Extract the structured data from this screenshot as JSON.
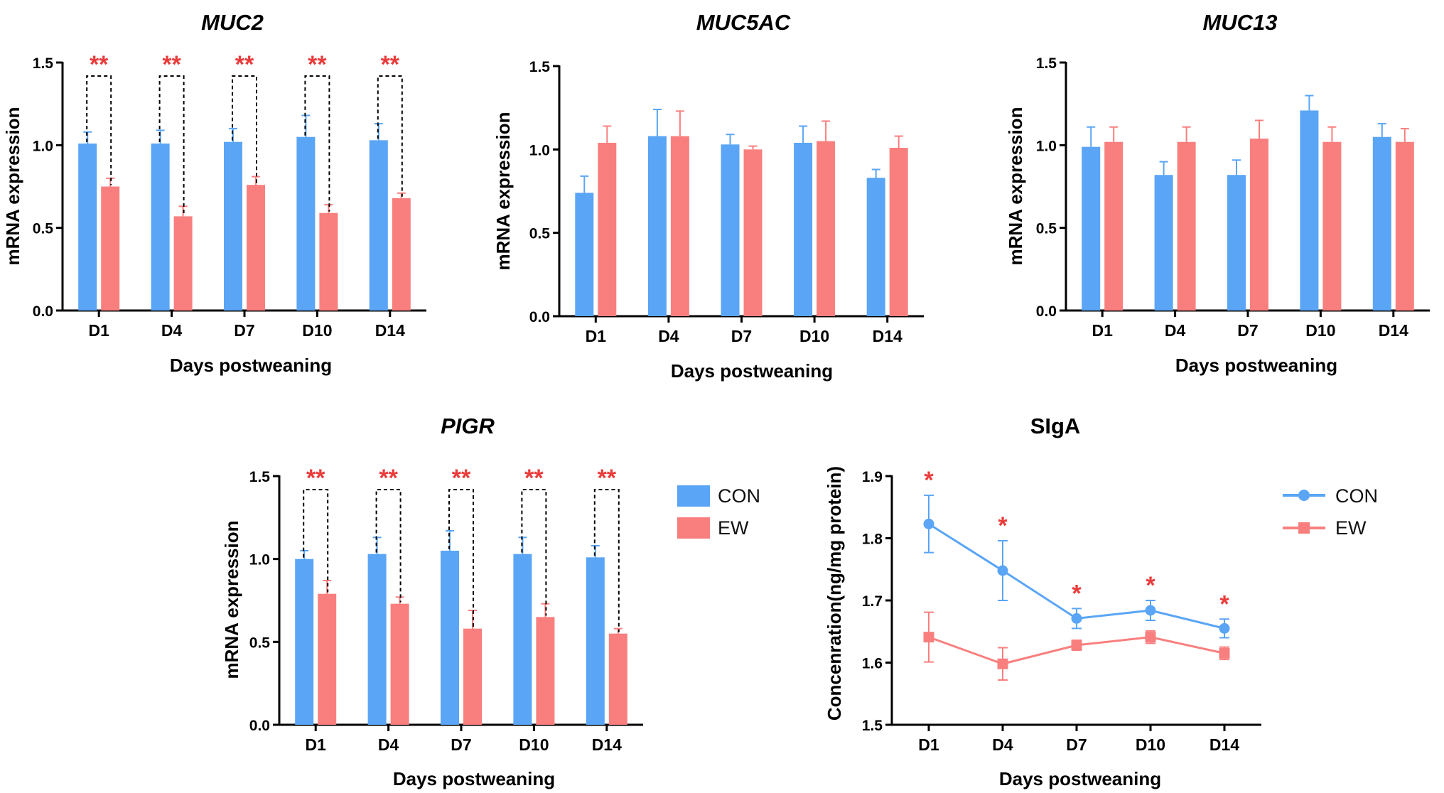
{
  "colors": {
    "con": "#5aa5f5",
    "ew": "#f97f7f",
    "star": "#ea3b3b",
    "axis": "#000000"
  },
  "legend": {
    "con_label": "CON",
    "ew_label": "EW"
  },
  "chart_data": [
    {
      "id": "muc2",
      "type": "bar",
      "title": "MUC2",
      "title_italic": true,
      "xlabel": "Days postweaning",
      "ylabel": "mRNA expression",
      "ylim": [
        0,
        1.5
      ],
      "yticks": [
        "0.0",
        "0.5",
        "1.0",
        "1.5"
      ],
      "categories": [
        "D1",
        "D4",
        "D7",
        "D10",
        "D14"
      ],
      "series": [
        {
          "name": "CON",
          "values": [
            1.01,
            1.01,
            1.02,
            1.05,
            1.03
          ],
          "errors": [
            0.07,
            0.08,
            0.08,
            0.13,
            0.1
          ]
        },
        {
          "name": "EW",
          "values": [
            0.75,
            0.57,
            0.76,
            0.59,
            0.68
          ],
          "errors": [
            0.05,
            0.06,
            0.05,
            0.05,
            0.03
          ]
        }
      ],
      "significance": [
        "**",
        "**",
        "**",
        "**",
        "**"
      ],
      "brackets": true
    },
    {
      "id": "muc5ac",
      "type": "bar",
      "title": "MUC5AC",
      "title_italic": true,
      "xlabel": "Days postweaning",
      "ylabel": "mRNA expression",
      "ylim": [
        0,
        1.5
      ],
      "yticks": [
        "0.0",
        "0.5",
        "1.0",
        "1.5"
      ],
      "categories": [
        "D1",
        "D4",
        "D7",
        "D10",
        "D14"
      ],
      "series": [
        {
          "name": "CON",
          "values": [
            0.74,
            1.08,
            1.03,
            1.04,
            0.83
          ],
          "errors": [
            0.1,
            0.16,
            0.06,
            0.1,
            0.05
          ]
        },
        {
          "name": "EW",
          "values": [
            1.04,
            1.08,
            1.0,
            1.05,
            1.01
          ],
          "errors": [
            0.1,
            0.15,
            0.02,
            0.12,
            0.07
          ]
        }
      ],
      "significance": [
        "",
        "",
        "",
        "",
        ""
      ],
      "brackets": false
    },
    {
      "id": "muc13",
      "type": "bar",
      "title": "MUC13",
      "title_italic": true,
      "xlabel": "Days postweaning",
      "ylabel": "mRNA expression",
      "ylim": [
        0,
        1.5
      ],
      "yticks": [
        "0.0",
        "0.5",
        "1.0",
        "1.5"
      ],
      "categories": [
        "D1",
        "D4",
        "D7",
        "D10",
        "D14"
      ],
      "series": [
        {
          "name": "CON",
          "values": [
            0.99,
            0.82,
            0.82,
            1.21,
            1.05
          ],
          "errors": [
            0.12,
            0.08,
            0.09,
            0.09,
            0.08
          ]
        },
        {
          "name": "EW",
          "values": [
            1.02,
            1.02,
            1.04,
            1.02,
            1.02
          ],
          "errors": [
            0.09,
            0.09,
            0.11,
            0.09,
            0.08
          ]
        }
      ],
      "significance": [
        "",
        "",
        "",
        "",
        ""
      ],
      "brackets": false
    },
    {
      "id": "pigr",
      "type": "bar",
      "title": "PIGR",
      "title_italic": true,
      "xlabel": "Days postweaning",
      "ylabel": "mRNA expression",
      "ylim": [
        0,
        1.5
      ],
      "yticks": [
        "0.0",
        "0.5",
        "1.0",
        "1.5"
      ],
      "categories": [
        "D1",
        "D4",
        "D7",
        "D10",
        "D14"
      ],
      "series": [
        {
          "name": "CON",
          "values": [
            1.0,
            1.03,
            1.05,
            1.03,
            1.01
          ],
          "errors": [
            0.05,
            0.1,
            0.12,
            0.1,
            0.07
          ]
        },
        {
          "name": "EW",
          "values": [
            0.79,
            0.73,
            0.58,
            0.65,
            0.55
          ],
          "errors": [
            0.08,
            0.04,
            0.11,
            0.08,
            0.03
          ]
        }
      ],
      "significance": [
        "**",
        "**",
        "**",
        "**",
        "**"
      ],
      "brackets": true
    },
    {
      "id": "siga",
      "type": "line",
      "title": "SIgA",
      "title_italic": false,
      "xlabel": "Days postweaning",
      "ylabel": "Concenration(ng/mg protein)",
      "ylim": [
        1.5,
        1.9
      ],
      "yticks": [
        "1.5",
        "1.6",
        "1.7",
        "1.8",
        "1.9"
      ],
      "categories": [
        "D1",
        "D4",
        "D7",
        "D10",
        "D14"
      ],
      "series": [
        {
          "name": "CON",
          "values": [
            1.823,
            1.748,
            1.671,
            1.684,
            1.655
          ],
          "errors": [
            0.046,
            0.048,
            0.016,
            0.016,
            0.015
          ]
        },
        {
          "name": "EW",
          "values": [
            1.641,
            1.598,
            1.628,
            1.641,
            1.615
          ],
          "errors": [
            0.04,
            0.026,
            0.008,
            0.01,
            0.01
          ]
        }
      ],
      "significance": [
        "*",
        "*",
        "*",
        "*",
        "*"
      ]
    }
  ]
}
